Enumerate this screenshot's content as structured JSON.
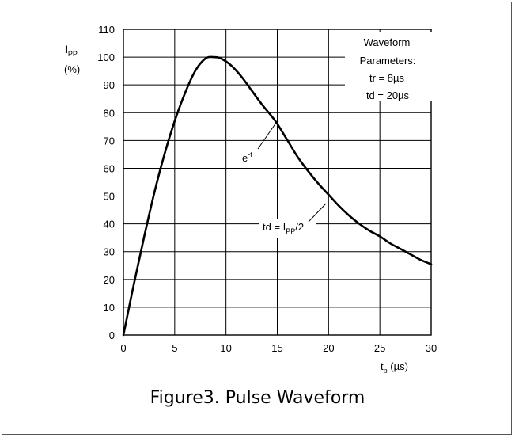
{
  "chart_data": {
    "type": "line",
    "ylabel": {
      "main": "I",
      "sub": "PP",
      "unit": "(%)"
    },
    "xlabel": {
      "main": "t",
      "sub": "p",
      "unit": " (µs)"
    },
    "xlim": [
      0,
      30
    ],
    "ylim": [
      0,
      110
    ],
    "x_ticks": [
      0,
      5,
      10,
      15,
      20,
      25,
      30
    ],
    "y_ticks": [
      0,
      10,
      20,
      30,
      40,
      50,
      60,
      70,
      80,
      90,
      100,
      110
    ],
    "grid": true,
    "series": [
      {
        "x": [
          0,
          1,
          2,
          3,
          4,
          5,
          6,
          7,
          8,
          8.8,
          9.5,
          10.5,
          11.5,
          12.5,
          13.5,
          14.5,
          15,
          16,
          17,
          18,
          19,
          20,
          21,
          22,
          23,
          24,
          25,
          26,
          27,
          28,
          29,
          30
        ],
        "y": [
          0,
          18,
          35,
          51,
          65,
          77,
          87,
          95,
          99.5,
          100,
          99.5,
          97,
          93,
          88,
          83,
          78.5,
          76,
          70,
          64,
          59,
          54.5,
          50.5,
          46.5,
          43,
          40,
          37.5,
          35.5,
          33,
          31,
          29,
          27,
          25.5
        ]
      }
    ],
    "annotations": {
      "box_lines": [
        "Waveform",
        "Parameters:",
        "tr = 8µs",
        "td = 20µs"
      ],
      "exp_label": {
        "base": "e",
        "sup": "-t"
      },
      "td_label": {
        "prefix": "td = I",
        "sub": "PP",
        "suffix": "/2"
      }
    }
  },
  "caption": "Figure3. Pulse Waveform"
}
